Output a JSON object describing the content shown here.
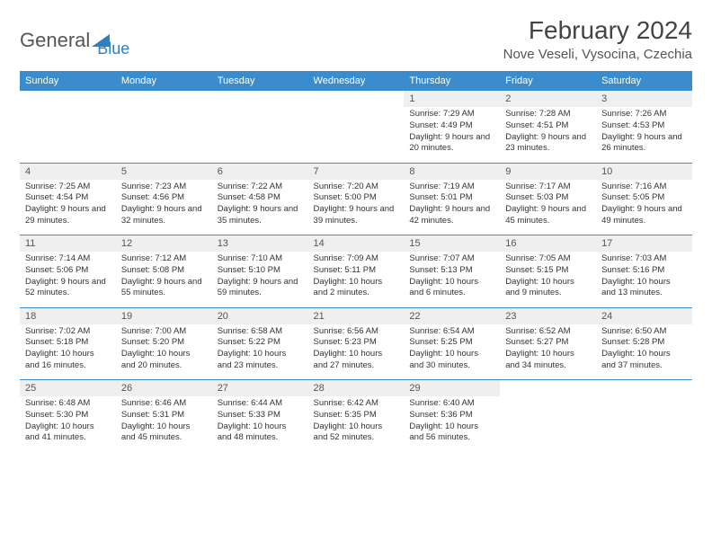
{
  "brand": {
    "name1": "General",
    "name2": "Blue"
  },
  "title": "February 2024",
  "location": "Nove Veseli, Vysocina, Czechia",
  "colors": {
    "accent": "#3b8ccc",
    "rowbg": "#efefef",
    "text": "#333333"
  },
  "day_headers": [
    "Sunday",
    "Monday",
    "Tuesday",
    "Wednesday",
    "Thursday",
    "Friday",
    "Saturday"
  ],
  "weeks": [
    [
      {
        "num": "",
        "sunrise": "",
        "sunset": "",
        "daylight": ""
      },
      {
        "num": "",
        "sunrise": "",
        "sunset": "",
        "daylight": ""
      },
      {
        "num": "",
        "sunrise": "",
        "sunset": "",
        "daylight": ""
      },
      {
        "num": "",
        "sunrise": "",
        "sunset": "",
        "daylight": ""
      },
      {
        "num": "1",
        "sunrise": "Sunrise: 7:29 AM",
        "sunset": "Sunset: 4:49 PM",
        "daylight": "Daylight: 9 hours and 20 minutes."
      },
      {
        "num": "2",
        "sunrise": "Sunrise: 7:28 AM",
        "sunset": "Sunset: 4:51 PM",
        "daylight": "Daylight: 9 hours and 23 minutes."
      },
      {
        "num": "3",
        "sunrise": "Sunrise: 7:26 AM",
        "sunset": "Sunset: 4:53 PM",
        "daylight": "Daylight: 9 hours and 26 minutes."
      }
    ],
    [
      {
        "num": "4",
        "sunrise": "Sunrise: 7:25 AM",
        "sunset": "Sunset: 4:54 PM",
        "daylight": "Daylight: 9 hours and 29 minutes."
      },
      {
        "num": "5",
        "sunrise": "Sunrise: 7:23 AM",
        "sunset": "Sunset: 4:56 PM",
        "daylight": "Daylight: 9 hours and 32 minutes."
      },
      {
        "num": "6",
        "sunrise": "Sunrise: 7:22 AM",
        "sunset": "Sunset: 4:58 PM",
        "daylight": "Daylight: 9 hours and 35 minutes."
      },
      {
        "num": "7",
        "sunrise": "Sunrise: 7:20 AM",
        "sunset": "Sunset: 5:00 PM",
        "daylight": "Daylight: 9 hours and 39 minutes."
      },
      {
        "num": "8",
        "sunrise": "Sunrise: 7:19 AM",
        "sunset": "Sunset: 5:01 PM",
        "daylight": "Daylight: 9 hours and 42 minutes."
      },
      {
        "num": "9",
        "sunrise": "Sunrise: 7:17 AM",
        "sunset": "Sunset: 5:03 PM",
        "daylight": "Daylight: 9 hours and 45 minutes."
      },
      {
        "num": "10",
        "sunrise": "Sunrise: 7:16 AM",
        "sunset": "Sunset: 5:05 PM",
        "daylight": "Daylight: 9 hours and 49 minutes."
      }
    ],
    [
      {
        "num": "11",
        "sunrise": "Sunrise: 7:14 AM",
        "sunset": "Sunset: 5:06 PM",
        "daylight": "Daylight: 9 hours and 52 minutes."
      },
      {
        "num": "12",
        "sunrise": "Sunrise: 7:12 AM",
        "sunset": "Sunset: 5:08 PM",
        "daylight": "Daylight: 9 hours and 55 minutes."
      },
      {
        "num": "13",
        "sunrise": "Sunrise: 7:10 AM",
        "sunset": "Sunset: 5:10 PM",
        "daylight": "Daylight: 9 hours and 59 minutes."
      },
      {
        "num": "14",
        "sunrise": "Sunrise: 7:09 AM",
        "sunset": "Sunset: 5:11 PM",
        "daylight": "Daylight: 10 hours and 2 minutes."
      },
      {
        "num": "15",
        "sunrise": "Sunrise: 7:07 AM",
        "sunset": "Sunset: 5:13 PM",
        "daylight": "Daylight: 10 hours and 6 minutes."
      },
      {
        "num": "16",
        "sunrise": "Sunrise: 7:05 AM",
        "sunset": "Sunset: 5:15 PM",
        "daylight": "Daylight: 10 hours and 9 minutes."
      },
      {
        "num": "17",
        "sunrise": "Sunrise: 7:03 AM",
        "sunset": "Sunset: 5:16 PM",
        "daylight": "Daylight: 10 hours and 13 minutes."
      }
    ],
    [
      {
        "num": "18",
        "sunrise": "Sunrise: 7:02 AM",
        "sunset": "Sunset: 5:18 PM",
        "daylight": "Daylight: 10 hours and 16 minutes."
      },
      {
        "num": "19",
        "sunrise": "Sunrise: 7:00 AM",
        "sunset": "Sunset: 5:20 PM",
        "daylight": "Daylight: 10 hours and 20 minutes."
      },
      {
        "num": "20",
        "sunrise": "Sunrise: 6:58 AM",
        "sunset": "Sunset: 5:22 PM",
        "daylight": "Daylight: 10 hours and 23 minutes."
      },
      {
        "num": "21",
        "sunrise": "Sunrise: 6:56 AM",
        "sunset": "Sunset: 5:23 PM",
        "daylight": "Daylight: 10 hours and 27 minutes."
      },
      {
        "num": "22",
        "sunrise": "Sunrise: 6:54 AM",
        "sunset": "Sunset: 5:25 PM",
        "daylight": "Daylight: 10 hours and 30 minutes."
      },
      {
        "num": "23",
        "sunrise": "Sunrise: 6:52 AM",
        "sunset": "Sunset: 5:27 PM",
        "daylight": "Daylight: 10 hours and 34 minutes."
      },
      {
        "num": "24",
        "sunrise": "Sunrise: 6:50 AM",
        "sunset": "Sunset: 5:28 PM",
        "daylight": "Daylight: 10 hours and 37 minutes."
      }
    ],
    [
      {
        "num": "25",
        "sunrise": "Sunrise: 6:48 AM",
        "sunset": "Sunset: 5:30 PM",
        "daylight": "Daylight: 10 hours and 41 minutes."
      },
      {
        "num": "26",
        "sunrise": "Sunrise: 6:46 AM",
        "sunset": "Sunset: 5:31 PM",
        "daylight": "Daylight: 10 hours and 45 minutes."
      },
      {
        "num": "27",
        "sunrise": "Sunrise: 6:44 AM",
        "sunset": "Sunset: 5:33 PM",
        "daylight": "Daylight: 10 hours and 48 minutes."
      },
      {
        "num": "28",
        "sunrise": "Sunrise: 6:42 AM",
        "sunset": "Sunset: 5:35 PM",
        "daylight": "Daylight: 10 hours and 52 minutes."
      },
      {
        "num": "29",
        "sunrise": "Sunrise: 6:40 AM",
        "sunset": "Sunset: 5:36 PM",
        "daylight": "Daylight: 10 hours and 56 minutes."
      },
      {
        "num": "",
        "sunrise": "",
        "sunset": "",
        "daylight": ""
      },
      {
        "num": "",
        "sunrise": "",
        "sunset": "",
        "daylight": ""
      }
    ]
  ]
}
